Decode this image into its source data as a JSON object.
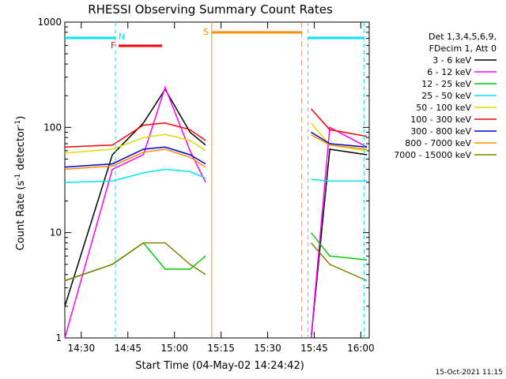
{
  "chart_data": {
    "type": "line",
    "title": "RHESSI Observing Summary Count Rates",
    "xlabel": "Start Time (04-May-02 14:24:42)",
    "ylabel_main": "Count Rate (s",
    "ylabel_sup1": "-1",
    "ylabel_mid": " detector",
    "ylabel_sup2": "-1",
    "ylabel_end": ")",
    "yscale": "log",
    "ylim": [
      1,
      1000
    ],
    "xlim": [
      "14:24:42",
      "16:02:42"
    ],
    "x_ticks": [
      "14:30",
      "14:45",
      "15:00",
      "15:15",
      "15:30",
      "15:45",
      "16:00"
    ],
    "y_ticks": [
      "1",
      "10",
      "100",
      "1000"
    ],
    "timestamp": "15-Oct-2021 11:15",
    "legend_header": [
      "Det 1,3,4,5,6,9,",
      "FDecim 1, Att 0"
    ],
    "flag_labels": {
      "night": "N",
      "flare": "F",
      "saa": "S"
    },
    "legend_position": "right",
    "colors": {
      "axis": "#000000",
      "night": "#00e5ee",
      "flare": "#ff0000",
      "saa": "#ff8c00"
    },
    "series": [
      {
        "name": "3 - 6 keV",
        "color": "#000000",
        "values": [
          2,
          55,
          110,
          230,
          90,
          68,
          1,
          62,
          55
        ]
      },
      {
        "name": "6 - 12 keV",
        "color": "#ff00ff",
        "values": [
          1,
          40,
          55,
          240,
          60,
          30,
          1,
          100,
          65
        ]
      },
      {
        "name": "12 - 25 keV",
        "color": "#00cc00",
        "values": [
          3.5,
          5,
          8,
          4.5,
          4.5,
          6,
          10,
          6,
          5.5
        ]
      },
      {
        "name": "25 - 50 keV",
        "color": "#00e5ee",
        "values": [
          30,
          31,
          37,
          40,
          38,
          33,
          32,
          31,
          31
        ]
      },
      {
        "name": "50 - 100 keV",
        "color": "#dddd00",
        "values": [
          57,
          62,
          80,
          86,
          75,
          60,
          110,
          68,
          60
        ]
      },
      {
        "name": "100 - 300 keV",
        "color": "#ff0000",
        "values": [
          65,
          68,
          105,
          110,
          95,
          75,
          150,
          95,
          82
        ]
      },
      {
        "name": "300 - 800 keV",
        "color": "#0000cc",
        "values": [
          42,
          45,
          62,
          65,
          55,
          45,
          90,
          70,
          65
        ]
      },
      {
        "name": "800 - 7000 keV",
        "color": "#ff8c00",
        "values": [
          40,
          43,
          58,
          62,
          52,
          42,
          85,
          68,
          62
        ]
      },
      {
        "name": "7000 - 15000 keV",
        "color": "#808000",
        "values": [
          3.5,
          5,
          8,
          8,
          5,
          4,
          8,
          5,
          3.5
        ]
      }
    ],
    "series_times": [
      "14:24:42",
      "14:40",
      "14:50",
      "14:57",
      "15:05",
      "15:10",
      "15:44",
      "15:50",
      "16:02"
    ],
    "gap_start": "15:12",
    "gap_end": "15:43",
    "night_markers": [
      "14:41",
      "15:43",
      "16:01"
    ],
    "saa_markers": [
      "15:12",
      "15:41"
    ],
    "flare_interval": [
      "14:42",
      "14:56"
    ]
  }
}
